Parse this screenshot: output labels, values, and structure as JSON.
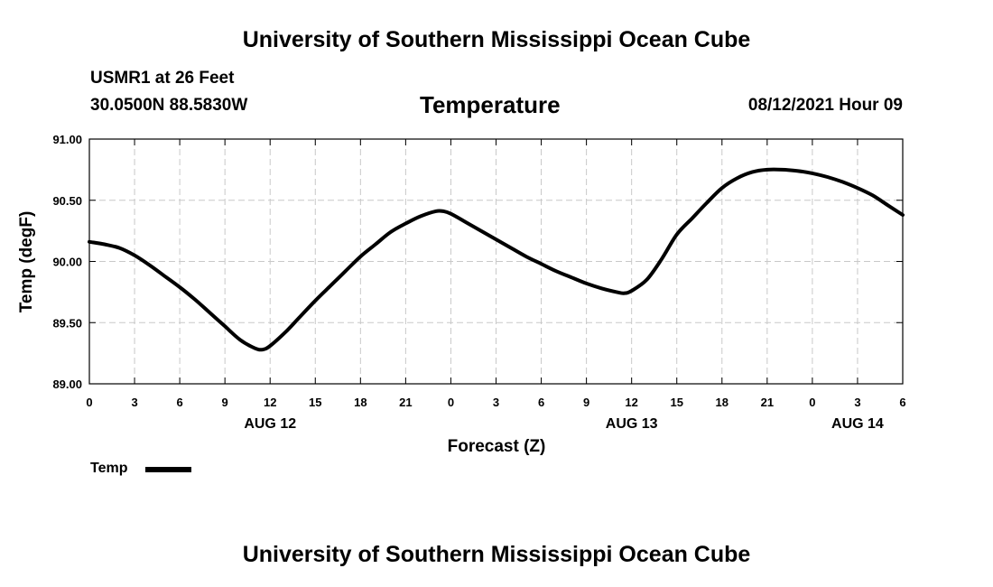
{
  "header": {
    "title": "University of Southern Mississippi Ocean Cube",
    "station": "USMR1 at 26 Feet",
    "coords": "30.0500N  88.5830W",
    "variable": "Temperature",
    "datetime": "08/12/2021 Hour 09"
  },
  "footer": {
    "title": "University of Southern Mississippi Ocean Cube"
  },
  "chart_data": {
    "type": "line",
    "title": "Temperature",
    "xlabel": "Forecast (Z)",
    "ylabel": "Temp (degF)",
    "xlim": [
      0,
      54
    ],
    "ylim": [
      89.0,
      91.0
    ],
    "x_ticks": [
      0,
      3,
      6,
      9,
      12,
      15,
      18,
      21,
      24,
      27,
      30,
      33,
      36,
      39,
      42,
      45,
      48,
      51,
      54
    ],
    "x_tick_labels": [
      "0",
      "3",
      "6",
      "9",
      "12",
      "15",
      "18",
      "21",
      "0",
      "3",
      "6",
      "9",
      "12",
      "15",
      "18",
      "21",
      "0",
      "3",
      "6"
    ],
    "y_ticks": [
      89.0,
      89.5,
      90.0,
      90.5,
      91.0
    ],
    "y_tick_labels": [
      "89.00",
      "89.50",
      "90.00",
      "90.50",
      "91.00"
    ],
    "date_labels": [
      {
        "x": 12,
        "label": "AUG 12"
      },
      {
        "x": 36,
        "label": "AUG 13"
      },
      {
        "x": 51,
        "label": "AUG 14"
      }
    ],
    "grid": true,
    "legend": {
      "position": "bottom-left",
      "entries": [
        "Temp"
      ]
    },
    "series": [
      {
        "name": "Temp",
        "color": "#000000",
        "x": [
          0,
          1,
          2,
          3,
          4,
          5,
          6,
          7,
          8,
          9,
          10,
          11,
          11.5,
          12,
          13,
          14,
          15,
          16,
          17,
          18,
          19,
          20,
          21,
          22,
          23,
          23.5,
          24,
          25,
          26,
          27,
          28,
          29,
          30,
          31,
          32,
          33,
          34,
          35,
          35.5,
          36,
          37,
          38,
          39,
          40,
          41,
          42,
          43,
          44,
          45,
          46,
          47,
          48,
          49,
          50,
          51,
          52,
          53,
          54
        ],
        "values": [
          90.16,
          90.14,
          90.11,
          90.05,
          89.97,
          89.88,
          89.79,
          89.69,
          89.58,
          89.47,
          89.36,
          89.29,
          89.28,
          89.31,
          89.42,
          89.55,
          89.68,
          89.8,
          89.92,
          90.04,
          90.14,
          90.24,
          90.31,
          90.37,
          90.41,
          90.41,
          90.39,
          90.32,
          90.25,
          90.18,
          90.11,
          90.04,
          89.98,
          89.92,
          89.87,
          89.82,
          89.78,
          89.75,
          89.74,
          89.76,
          89.85,
          90.02,
          90.22,
          90.35,
          90.48,
          90.6,
          90.68,
          90.73,
          90.75,
          90.75,
          90.74,
          90.72,
          90.69,
          90.65,
          90.6,
          90.54,
          90.46,
          90.38
        ]
      }
    ]
  }
}
